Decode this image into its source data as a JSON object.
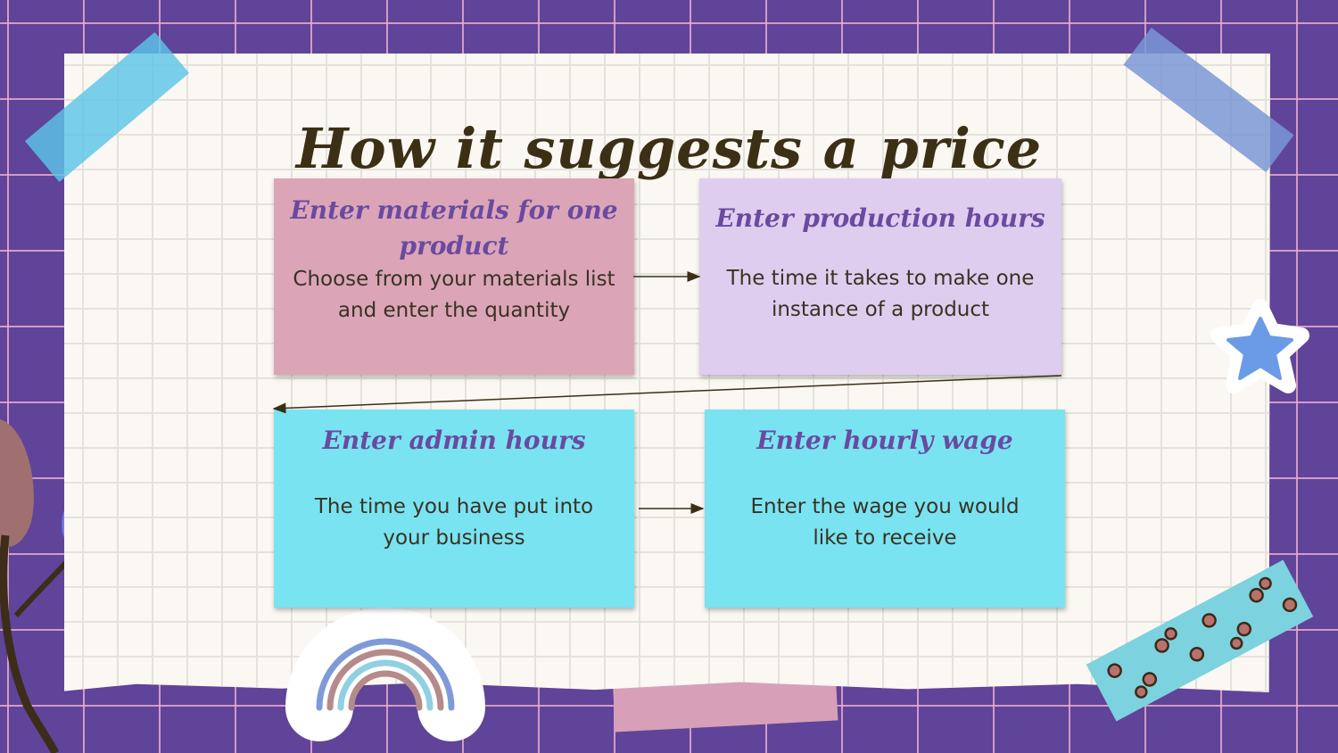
{
  "slide": {
    "title": "How it suggests a price"
  },
  "steps": [
    {
      "heading": "Enter materials for one product",
      "body": "Choose from your materials list and enter the quantity"
    },
    {
      "heading": "Enter production hours",
      "body": "The time it takes to make one instance of a product"
    },
    {
      "heading": "Enter admin hours",
      "body": "The time you have put into your business"
    },
    {
      "heading": "Enter hourly wage",
      "body": "Enter the wage you would like to receive"
    }
  ],
  "colors": {
    "background": "#5f4499",
    "paper": "#fbf7f2",
    "card_pink": "#dba5b7",
    "card_lavender": "#dfcdef",
    "card_cyan": "#79e3f2",
    "heading": "#6a4aa0",
    "title": "#3b2f16"
  },
  "decorations": [
    "tape-strip",
    "star-sticker",
    "rainbow-sticker",
    "leaf-branch",
    "eye-pattern-tape"
  ]
}
